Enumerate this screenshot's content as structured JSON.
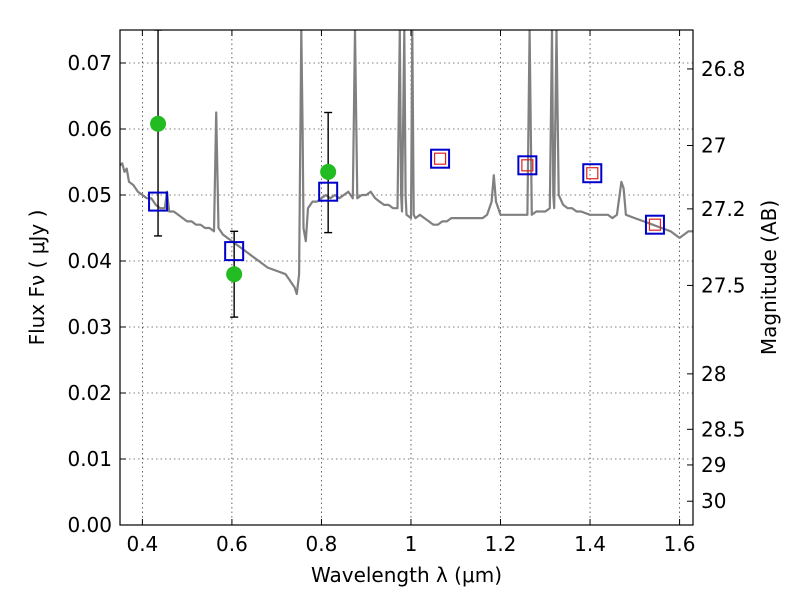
{
  "chart_data": {
    "type": "scatter",
    "xlabel": "Wavelength  λ (μm)",
    "ylabel": "Flux  Fν  ( μJy )",
    "y2label": "Magnitude (AB)",
    "xlim": [
      0.35,
      1.63
    ],
    "ylim": [
      0.0,
      0.075
    ],
    "grid": true,
    "x_ticks": [
      0.4,
      0.6,
      0.8,
      1.0,
      1.2,
      1.4,
      1.6
    ],
    "x_tick_labels": [
      "0.4",
      "0.6",
      "0.8",
      "1",
      "1.2",
      "1.4",
      "1.6"
    ],
    "y_ticks": [
      0.0,
      0.01,
      0.02,
      0.03,
      0.04,
      0.05,
      0.06,
      0.07
    ],
    "y_tick_labels": [
      "0.00",
      "0.01",
      "0.02",
      "0.03",
      "0.04",
      "0.05",
      "0.06",
      "0.07"
    ],
    "y2_ticks": [
      {
        "flux": 0.0691,
        "label": "26.8"
      },
      {
        "flux": 0.0575,
        "label": "27"
      },
      {
        "flux": 0.0479,
        "label": "27.2"
      },
      {
        "flux": 0.0363,
        "label": "27.5"
      },
      {
        "flux": 0.0229,
        "label": "28"
      },
      {
        "flux": 0.0145,
        "label": "28.5"
      },
      {
        "flux": 0.0091,
        "label": "29"
      },
      {
        "flux": 0.0036,
        "label": "30"
      }
    ],
    "series": [
      {
        "kind": "model_spectrum",
        "color": "#808080",
        "points": [
          [
            0.35,
            0.0545
          ],
          [
            0.355,
            0.0548
          ],
          [
            0.36,
            0.0535
          ],
          [
            0.365,
            0.054
          ],
          [
            0.37,
            0.052
          ],
          [
            0.38,
            0.0515
          ],
          [
            0.39,
            0.0505
          ],
          [
            0.4,
            0.05
          ],
          [
            0.41,
            0.0495
          ],
          [
            0.42,
            0.0495
          ],
          [
            0.43,
            0.0485
          ],
          [
            0.44,
            0.048
          ],
          [
            0.45,
            0.048
          ],
          [
            0.455,
            0.0505
          ],
          [
            0.46,
            0.0475
          ],
          [
            0.47,
            0.0475
          ],
          [
            0.48,
            0.047
          ],
          [
            0.49,
            0.0465
          ],
          [
            0.5,
            0.046
          ],
          [
            0.51,
            0.046
          ],
          [
            0.52,
            0.0455
          ],
          [
            0.53,
            0.0455
          ],
          [
            0.54,
            0.045
          ],
          [
            0.55,
            0.045
          ],
          [
            0.56,
            0.0445
          ],
          [
            0.565,
            0.0625
          ],
          [
            0.57,
            0.045
          ],
          [
            0.58,
            0.044
          ],
          [
            0.59,
            0.0435
          ],
          [
            0.6,
            0.043
          ],
          [
            0.62,
            0.042
          ],
          [
            0.64,
            0.041
          ],
          [
            0.66,
            0.04
          ],
          [
            0.68,
            0.039
          ],
          [
            0.7,
            0.0385
          ],
          [
            0.72,
            0.038
          ],
          [
            0.74,
            0.036
          ],
          [
            0.745,
            0.035
          ],
          [
            0.75,
            0.038
          ],
          [
            0.753,
            0.06
          ],
          [
            0.755,
            0.075
          ],
          [
            0.758,
            0.06
          ],
          [
            0.76,
            0.045
          ],
          [
            0.765,
            0.043
          ],
          [
            0.77,
            0.048
          ],
          [
            0.78,
            0.049
          ],
          [
            0.79,
            0.049
          ],
          [
            0.8,
            0.0495
          ],
          [
            0.81,
            0.05
          ],
          [
            0.82,
            0.0495
          ],
          [
            0.83,
            0.05
          ],
          [
            0.84,
            0.0495
          ],
          [
            0.85,
            0.05
          ],
          [
            0.86,
            0.0505
          ],
          [
            0.87,
            0.0495
          ],
          [
            0.875,
            0.075
          ],
          [
            0.88,
            0.0495
          ],
          [
            0.89,
            0.05
          ],
          [
            0.9,
            0.05
          ],
          [
            0.91,
            0.0505
          ],
          [
            0.92,
            0.0495
          ],
          [
            0.93,
            0.049
          ],
          [
            0.94,
            0.0485
          ],
          [
            0.95,
            0.0485
          ],
          [
            0.96,
            0.048
          ],
          [
            0.97,
            0.048
          ],
          [
            0.975,
            0.075
          ],
          [
            0.978,
            0.05
          ],
          [
            0.98,
            0.0475
          ],
          [
            0.985,
            0.075
          ],
          [
            0.988,
            0.05
          ],
          [
            0.99,
            0.047
          ],
          [
            1.0,
            0.0465
          ],
          [
            1.003,
            0.075
          ],
          [
            1.006,
            0.047
          ],
          [
            1.01,
            0.0465
          ],
          [
            1.02,
            0.047
          ],
          [
            1.03,
            0.0465
          ],
          [
            1.04,
            0.046
          ],
          [
            1.05,
            0.0455
          ],
          [
            1.06,
            0.0455
          ],
          [
            1.07,
            0.046
          ],
          [
            1.08,
            0.046
          ],
          [
            1.09,
            0.0465
          ],
          [
            1.1,
            0.0465
          ],
          [
            1.12,
            0.0465
          ],
          [
            1.14,
            0.0465
          ],
          [
            1.16,
            0.0465
          ],
          [
            1.17,
            0.047
          ],
          [
            1.18,
            0.049
          ],
          [
            1.185,
            0.053
          ],
          [
            1.19,
            0.049
          ],
          [
            1.2,
            0.047
          ],
          [
            1.22,
            0.047
          ],
          [
            1.24,
            0.047
          ],
          [
            1.25,
            0.047
          ],
          [
            1.26,
            0.047
          ],
          [
            1.265,
            0.075
          ],
          [
            1.27,
            0.047
          ],
          [
            1.28,
            0.0475
          ],
          [
            1.3,
            0.0475
          ],
          [
            1.31,
            0.048
          ],
          [
            1.315,
            0.075
          ],
          [
            1.318,
            0.05
          ],
          [
            1.32,
            0.048
          ],
          [
            1.325,
            0.075
          ],
          [
            1.33,
            0.05
          ],
          [
            1.34,
            0.0485
          ],
          [
            1.35,
            0.048
          ],
          [
            1.36,
            0.048
          ],
          [
            1.37,
            0.0475
          ],
          [
            1.38,
            0.0475
          ],
          [
            1.4,
            0.047
          ],
          [
            1.42,
            0.047
          ],
          [
            1.44,
            0.047
          ],
          [
            1.45,
            0.0465
          ],
          [
            1.46,
            0.047
          ],
          [
            1.47,
            0.052
          ],
          [
            1.475,
            0.051
          ],
          [
            1.48,
            0.047
          ],
          [
            1.5,
            0.0465
          ],
          [
            1.52,
            0.046
          ],
          [
            1.54,
            0.0455
          ],
          [
            1.56,
            0.045
          ],
          [
            1.58,
            0.0445
          ],
          [
            1.59,
            0.044
          ],
          [
            1.6,
            0.0435
          ],
          [
            1.61,
            0.044
          ],
          [
            1.62,
            0.0445
          ],
          [
            1.63,
            0.0445
          ]
        ]
      },
      {
        "kind": "observed_photometry",
        "color": "#22bb22",
        "points": [
          {
            "x": 0.435,
            "y": 0.0608,
            "yerr_low": 0.0438,
            "yerr_high": 0.075
          },
          {
            "x": 0.605,
            "y": 0.038,
            "yerr_low": 0.0315,
            "yerr_high": 0.0445
          },
          {
            "x": 0.815,
            "y": 0.0535,
            "yerr_low": 0.0443,
            "yerr_high": 0.0625
          }
        ]
      },
      {
        "kind": "model_photometry",
        "color": "#0000cc",
        "points": [
          {
            "x": 0.435,
            "y": 0.049
          },
          {
            "x": 0.605,
            "y": 0.0415
          },
          {
            "x": 0.815,
            "y": 0.0505
          },
          {
            "x": 1.065,
            "y": 0.0555
          },
          {
            "x": 1.26,
            "y": 0.0545
          },
          {
            "x": 1.405,
            "y": 0.0533
          },
          {
            "x": 1.545,
            "y": 0.0455
          }
        ]
      },
      {
        "kind": "model_photometry_inner",
        "color": "#dd2222",
        "points": [
          {
            "x": 1.065,
            "y": 0.0555
          },
          {
            "x": 1.26,
            "y": 0.0545
          },
          {
            "x": 1.405,
            "y": 0.0533
          },
          {
            "x": 1.545,
            "y": 0.0455
          }
        ]
      }
    ]
  }
}
